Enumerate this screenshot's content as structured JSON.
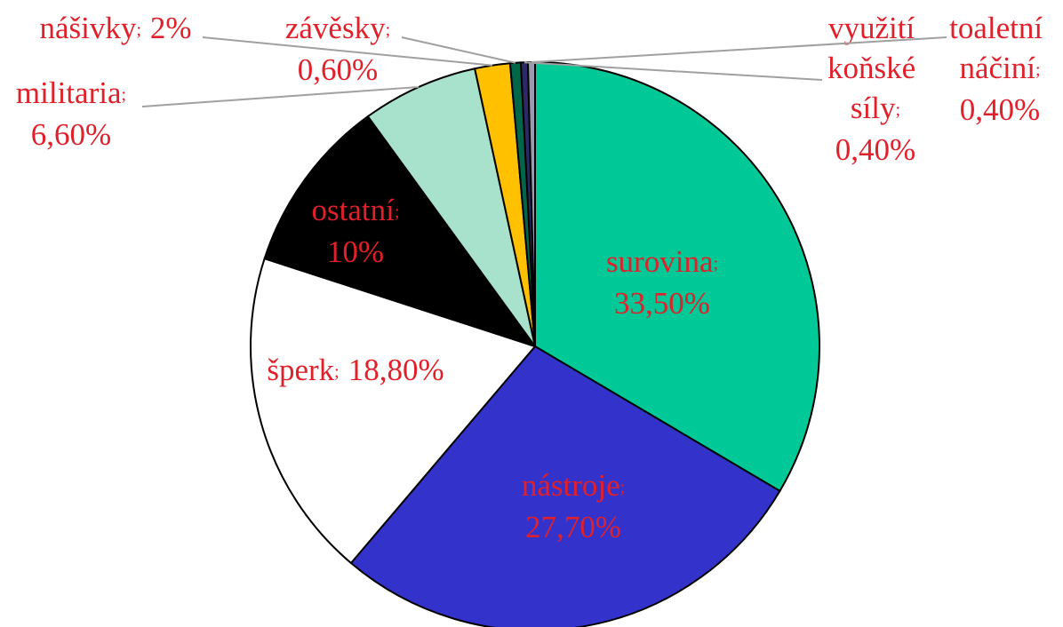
{
  "chart_data": {
    "type": "pie",
    "categories": [
      "surovina",
      "nástroje",
      "šperk",
      "ostatní",
      "militaria",
      "nášivky",
      "závěsky",
      "využití koňské síly",
      "toaletní náčiní"
    ],
    "values": [
      33.5,
      27.7,
      18.8,
      10,
      6.6,
      2,
      0.6,
      0.4,
      0.4
    ],
    "value_labels": [
      "33,50%",
      "27,70%",
      "18,80%",
      "10%",
      "6,60%",
      "2%",
      "0,60%",
      "0,40%",
      "0,40%"
    ],
    "separator": ";",
    "colors": [
      "#00c896",
      "#3333cc",
      "#ffffff",
      "#000000",
      "#a8e2cc",
      "#ffc000",
      "#00664a",
      "#2a2a66",
      "#9a9ab0"
    ]
  }
}
